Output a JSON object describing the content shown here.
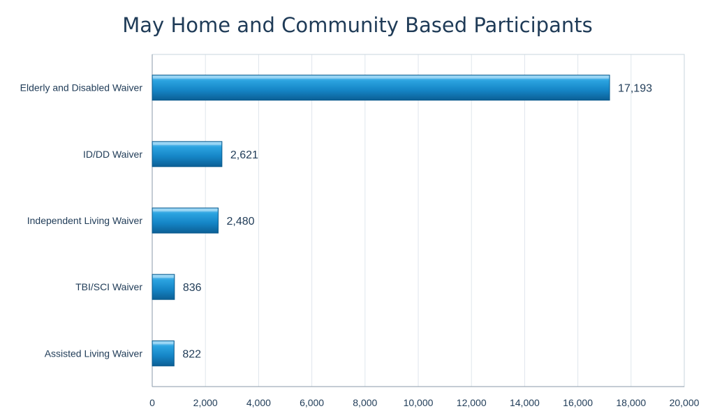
{
  "chart_data": {
    "type": "bar",
    "orientation": "horizontal",
    "title": "May Home and Community Based Participants",
    "categories": [
      "Elderly and Disabled Waiver",
      "ID/DD Waiver",
      "Independent Living Waiver",
      "TBI/SCI Waiver",
      "Assisted Living Waiver"
    ],
    "values": [
      17193,
      2621,
      2480,
      836,
      822
    ],
    "data_labels": [
      "17,193",
      "2,621",
      "2,480",
      "836",
      "822"
    ],
    "x_ticks": [
      "0",
      "2,000",
      "4,000",
      "6,000",
      "8,000",
      "10,000",
      "12,000",
      "14,000",
      "16,000",
      "18,000",
      "20,000"
    ],
    "xlim": [
      0,
      20000
    ],
    "grid": true,
    "legend": "none",
    "bar_color": "#1a8fd1"
  }
}
